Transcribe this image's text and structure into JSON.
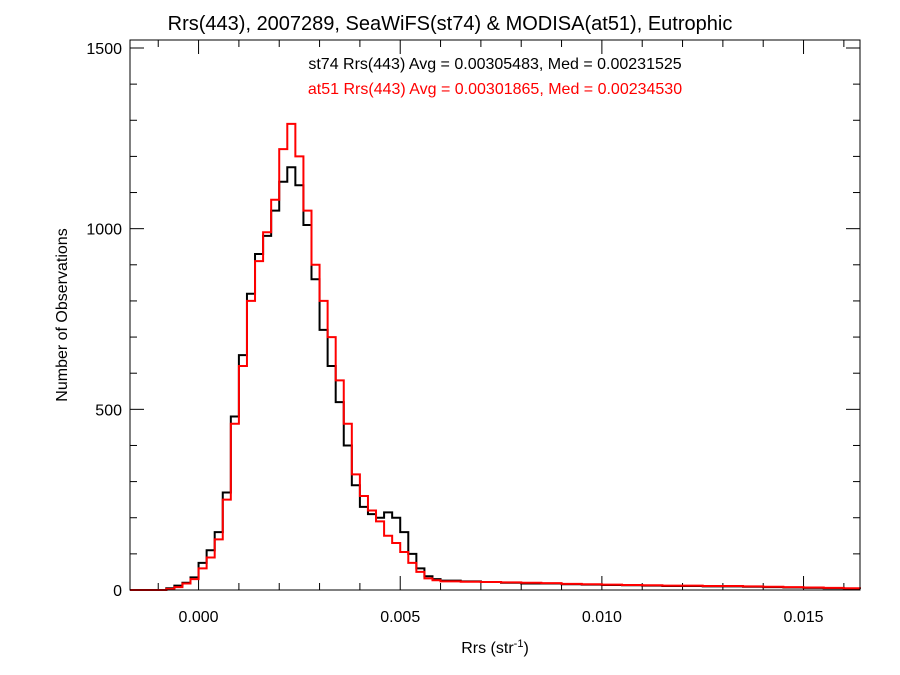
{
  "chart_data": {
    "type": "histogram",
    "title": "Rrs(443), 2007289, SeaWiFS(st74) & MODISA(at51), Eutrophic",
    "xlabel_main": "Rrs (str",
    "xlabel_sup": "-1",
    "xlabel_tail": ")",
    "ylabel": "Number of Observations",
    "xlim": [
      -0.0017,
      0.0164
    ],
    "ylim": [
      0,
      1500
    ],
    "x_ticks": [
      0.0,
      0.005,
      0.01,
      0.015
    ],
    "x_tick_labels": [
      "0.000",
      "0.005",
      "0.010",
      "0.015"
    ],
    "y_ticks": [
      0,
      500,
      1000,
      1500
    ],
    "y_tick_labels": [
      "0",
      "500",
      "1000",
      "1500"
    ],
    "series": [
      {
        "name": "st74",
        "color": "#000000",
        "annotation": "st74 Rrs(443) Avg = 0.00305483, Med = 0.00231525",
        "points": [
          [
            -0.0017,
            0
          ],
          [
            -0.001,
            0
          ],
          [
            -0.0008,
            5
          ],
          [
            -0.0006,
            12
          ],
          [
            -0.0004,
            20
          ],
          [
            -0.0002,
            35
          ],
          [
            0.0,
            75
          ],
          [
            0.0002,
            110
          ],
          [
            0.0004,
            160
          ],
          [
            0.0006,
            270
          ],
          [
            0.0008,
            480
          ],
          [
            0.001,
            650
          ],
          [
            0.0012,
            820
          ],
          [
            0.0014,
            930
          ],
          [
            0.0016,
            980
          ],
          [
            0.0018,
            1050
          ],
          [
            0.002,
            1130
          ],
          [
            0.0022,
            1170
          ],
          [
            0.0024,
            1120
          ],
          [
            0.0026,
            1010
          ],
          [
            0.0028,
            860
          ],
          [
            0.003,
            720
          ],
          [
            0.0032,
            620
          ],
          [
            0.0034,
            520
          ],
          [
            0.0036,
            400
          ],
          [
            0.0038,
            290
          ],
          [
            0.004,
            230
          ],
          [
            0.0042,
            210
          ],
          [
            0.0044,
            200
          ],
          [
            0.0046,
            215
          ],
          [
            0.0048,
            200
          ],
          [
            0.005,
            160
          ],
          [
            0.0052,
            100
          ],
          [
            0.0054,
            60
          ],
          [
            0.0056,
            38
          ],
          [
            0.0058,
            30
          ],
          [
            0.006,
            26
          ],
          [
            0.0065,
            24
          ],
          [
            0.007,
            22
          ],
          [
            0.0075,
            20
          ],
          [
            0.008,
            18
          ],
          [
            0.0085,
            18
          ],
          [
            0.009,
            16
          ],
          [
            0.0095,
            15
          ],
          [
            0.01,
            14
          ],
          [
            0.0105,
            13
          ],
          [
            0.011,
            12
          ],
          [
            0.0115,
            11
          ],
          [
            0.012,
            11
          ],
          [
            0.0125,
            10
          ],
          [
            0.013,
            10
          ],
          [
            0.0135,
            9
          ],
          [
            0.014,
            8
          ],
          [
            0.0145,
            7
          ],
          [
            0.015,
            6
          ],
          [
            0.0155,
            5
          ],
          [
            0.016,
            4
          ],
          [
            0.0164,
            3
          ]
        ]
      },
      {
        "name": "at51",
        "color": "#ff0000",
        "annotation": "at51 Rrs(443) Avg = 0.00301865, Med = 0.00234530",
        "points": [
          [
            -0.0017,
            0
          ],
          [
            -0.001,
            0
          ],
          [
            -0.0008,
            3
          ],
          [
            -0.0006,
            8
          ],
          [
            -0.0004,
            18
          ],
          [
            -0.0002,
            30
          ],
          [
            0.0,
            60
          ],
          [
            0.0002,
            90
          ],
          [
            0.0004,
            140
          ],
          [
            0.0006,
            250
          ],
          [
            0.0008,
            460
          ],
          [
            0.001,
            620
          ],
          [
            0.0012,
            800
          ],
          [
            0.0014,
            910
          ],
          [
            0.0016,
            990
          ],
          [
            0.0018,
            1080
          ],
          [
            0.002,
            1220
          ],
          [
            0.0022,
            1290
          ],
          [
            0.0024,
            1200
          ],
          [
            0.0026,
            1050
          ],
          [
            0.0028,
            900
          ],
          [
            0.003,
            800
          ],
          [
            0.0032,
            700
          ],
          [
            0.0034,
            580
          ],
          [
            0.0036,
            460
          ],
          [
            0.0038,
            320
          ],
          [
            0.004,
            260
          ],
          [
            0.0042,
            220
          ],
          [
            0.0044,
            190
          ],
          [
            0.0046,
            150
          ],
          [
            0.0048,
            130
          ],
          [
            0.005,
            105
          ],
          [
            0.0052,
            75
          ],
          [
            0.0054,
            50
          ],
          [
            0.0056,
            32
          ],
          [
            0.0058,
            27
          ],
          [
            0.006,
            24
          ],
          [
            0.0065,
            23
          ],
          [
            0.007,
            22
          ],
          [
            0.0075,
            21
          ],
          [
            0.008,
            20
          ],
          [
            0.0085,
            19
          ],
          [
            0.009,
            17
          ],
          [
            0.0095,
            16
          ],
          [
            0.01,
            15
          ],
          [
            0.0105,
            14
          ],
          [
            0.011,
            13
          ],
          [
            0.0115,
            12
          ],
          [
            0.012,
            12
          ],
          [
            0.0125,
            11
          ],
          [
            0.013,
            11
          ],
          [
            0.0135,
            10
          ],
          [
            0.014,
            9
          ],
          [
            0.0145,
            8
          ],
          [
            0.015,
            7
          ],
          [
            0.0155,
            6
          ],
          [
            0.016,
            5
          ],
          [
            0.0164,
            4
          ]
        ]
      }
    ]
  }
}
